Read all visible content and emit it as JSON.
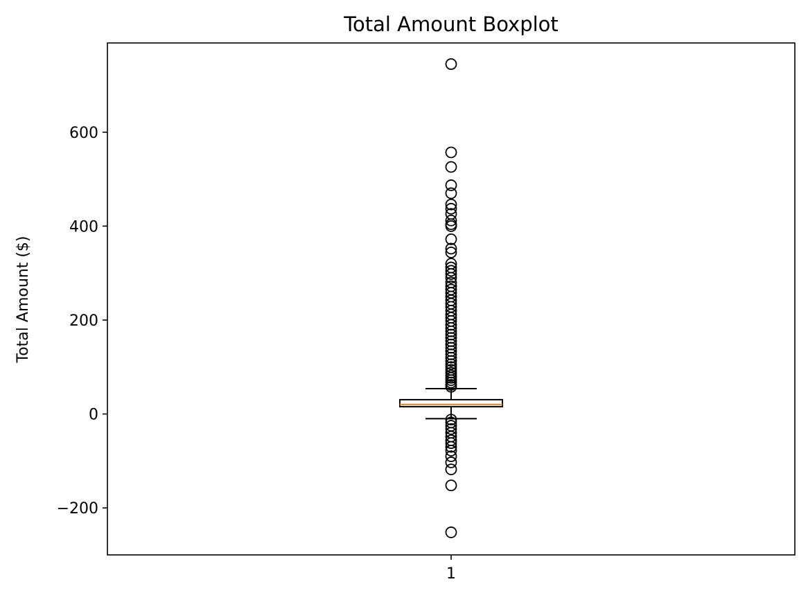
{
  "chart_data": {
    "type": "boxplot",
    "title": "Total Amount Boxplot",
    "xlabel": "",
    "ylabel": "Total Amount ($)",
    "ylim": [
      -300,
      790
    ],
    "y_ticks": [
      -200,
      0,
      200,
      400,
      600
    ],
    "y_tick_labels": [
      "−200",
      "0",
      "200",
      "400",
      "600"
    ],
    "categories": [
      "1"
    ],
    "grid": false,
    "box": {
      "category": "1",
      "q1": 15.5,
      "median": 20.3,
      "q3": 30.5,
      "whisker_low": -10,
      "whisker_high": 54,
      "outliers": [
        745,
        557,
        526,
        487,
        470,
        446,
        437,
        426,
        412,
        404,
        400,
        372,
        352,
        344,
        320,
        312,
        305,
        298,
        290,
        280,
        272,
        265,
        258,
        250,
        242,
        235,
        228,
        220,
        212,
        205,
        198,
        190,
        183,
        176,
        169,
        162,
        155,
        148,
        141,
        134,
        127,
        120,
        113,
        106,
        100,
        94,
        88,
        82,
        77,
        72,
        67,
        62,
        58,
        -12,
        -18,
        -25,
        -32,
        -40,
        -48,
        -56,
        -62,
        -70,
        -78,
        -90,
        -103,
        -118,
        -152,
        -252
      ]
    },
    "colors": {
      "box": "#000000",
      "median": "#ff7f0e",
      "outlier": "#000000"
    }
  }
}
